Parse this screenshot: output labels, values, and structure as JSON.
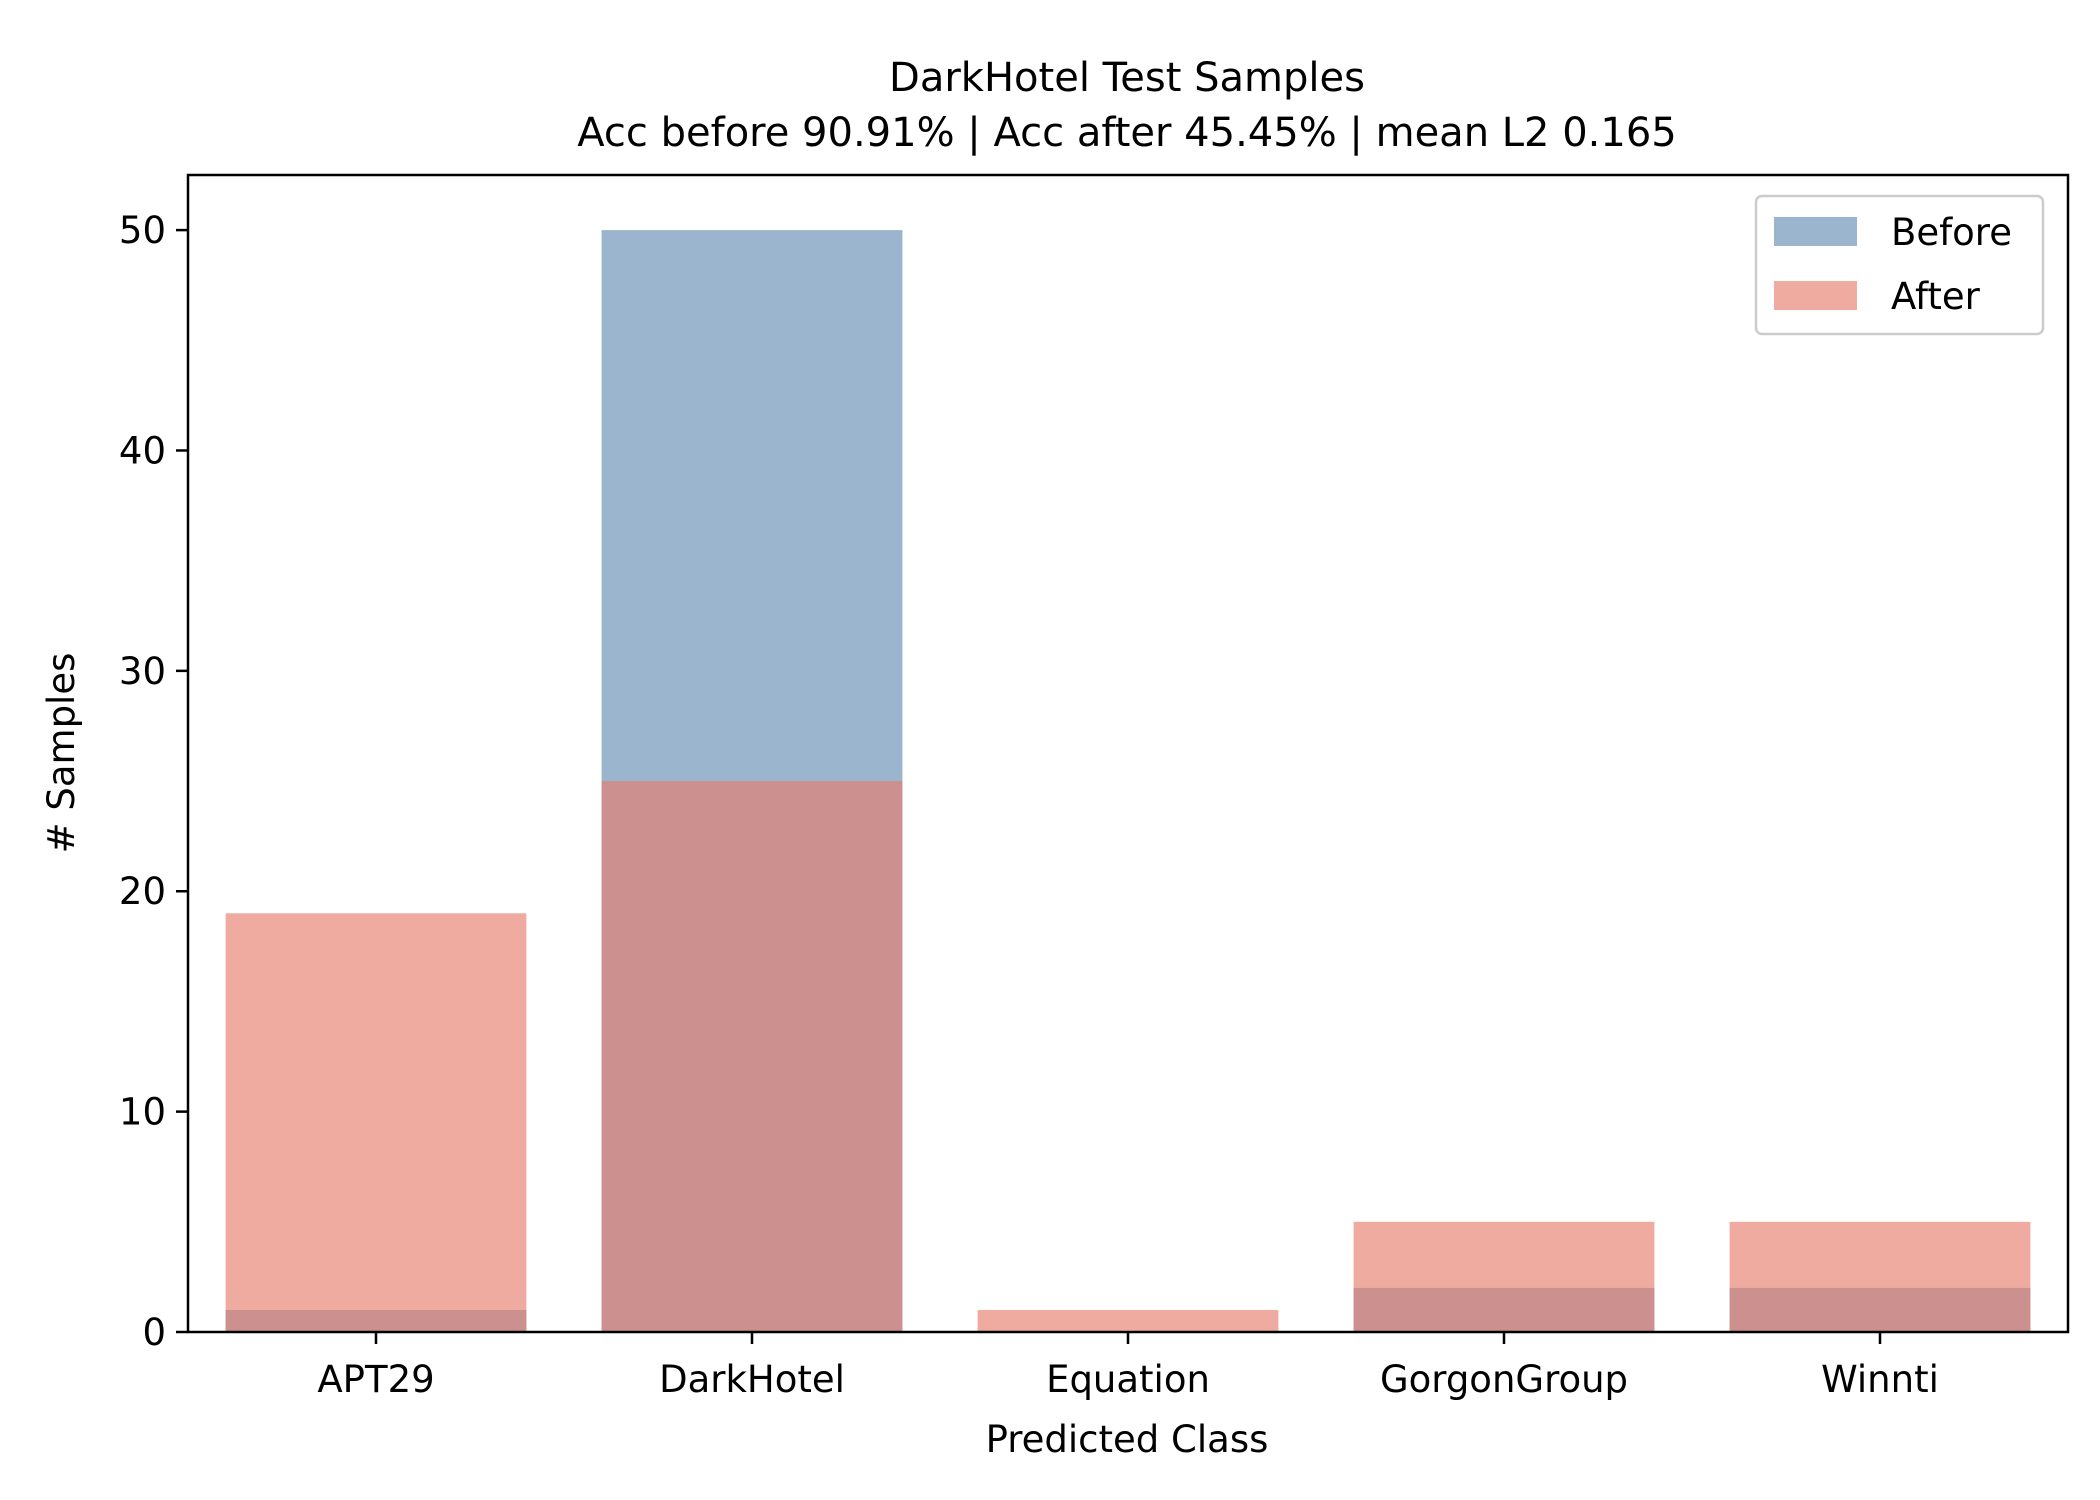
{
  "chart_data": {
    "type": "bar",
    "title": "DarkHotel Test Samples",
    "subtitle": "Acc before 90.91% | Acc after 45.45% | mean L2 0.165",
    "xlabel": "Predicted Class",
    "ylabel": "# Samples",
    "categories": [
      "APT29",
      "DarkHotel",
      "Equation",
      "GorgonGroup",
      "Winnti"
    ],
    "series": [
      {
        "name": "Before",
        "values": [
          1,
          50,
          0,
          2,
          2
        ],
        "color": "#5e87b0",
        "opacity": 0.62
      },
      {
        "name": "After",
        "values": [
          19,
          25,
          1,
          5,
          5
        ],
        "color": "#e67e6d",
        "opacity": 0.65
      }
    ],
    "ylim": [
      0,
      52.5
    ],
    "yticks": [
      0,
      10,
      20,
      30,
      40,
      50
    ],
    "grid": false,
    "legend_position": "top-right"
  }
}
